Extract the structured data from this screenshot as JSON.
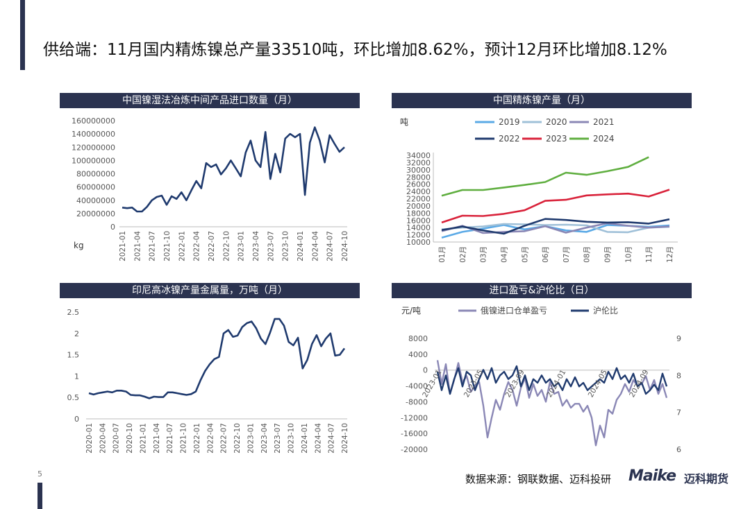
{
  "title": "供给端：11月国内精炼镍总产量33510吨，环比增加8.62%，预计12月环比增加8.12%",
  "page_number": "5",
  "source_note": "数据来源：钢联数据、迈科投研",
  "logo": {
    "latin": "Maike",
    "cn": "迈科期货"
  },
  "colors": {
    "navy": "#1f3a6e",
    "header_bg": "#2b3350",
    "accent": "#2b3350"
  },
  "chart_data": [
    {
      "id": "c1",
      "type": "line",
      "title": "中国镍湿法冶炼中间产品进口数量（月）",
      "ylabel": "kg",
      "ylim": [
        0,
        160000000
      ],
      "yticks": [
        0,
        20000000,
        40000000,
        60000000,
        80000000,
        100000000,
        120000000,
        140000000,
        160000000
      ],
      "ytick_labels": [
        "0",
        "20000000",
        "40000000",
        "60000000",
        "80000000",
        "100000000",
        "120000000",
        "140000000",
        "160000000"
      ],
      "xtick_labels": [
        "2021-01",
        "2021-04",
        "2021-07",
        "2021-10",
        "2022-01",
        "2022-04",
        "2022-07",
        "2022-10",
        "2023-01",
        "2023-04",
        "2023-07",
        "2023-10",
        "2024-01",
        "2024-04",
        "2024-07",
        "2024-10"
      ],
      "series": [
        {
          "name": "进口数量",
          "color": "#1f3a6e",
          "values": [
            29000000,
            28000000,
            29000000,
            23000000,
            23000000,
            30000000,
            40000000,
            45000000,
            47000000,
            33000000,
            46000000,
            42000000,
            52000000,
            40000000,
            55000000,
            69000000,
            58000000,
            96000000,
            90000000,
            94000000,
            79000000,
            88000000,
            100000000,
            88000000,
            76000000,
            112000000,
            130000000,
            100000000,
            90000000,
            143000000,
            72000000,
            110000000,
            82000000,
            133000000,
            140000000,
            135000000,
            140000000,
            48000000,
            127000000,
            150000000,
            130000000,
            97000000,
            138000000,
            125000000,
            113000000,
            120000000
          ]
        }
      ]
    },
    {
      "id": "c2",
      "type": "line",
      "title": "中国精炼镍产量（月）",
      "ylabel": "吨",
      "ylim": [
        10000,
        34000
      ],
      "yticks": [
        10000,
        12000,
        14000,
        16000,
        18000,
        20000,
        22000,
        24000,
        26000,
        28000,
        30000,
        32000,
        34000
      ],
      "ytick_labels": [
        "10000",
        "12000",
        "14000",
        "16000",
        "18000",
        "20000",
        "22000",
        "24000",
        "26000",
        "28000",
        "30000",
        "32000",
        "34000"
      ],
      "categories": [
        "01月",
        "02月",
        "03月",
        "04月",
        "05月",
        "06月",
        "07月",
        "08月",
        "09月",
        "10月",
        "11月",
        "12月"
      ],
      "series": [
        {
          "name": "2019",
          "color": "#5aa9e6",
          "values": [
            11200,
            12800,
            13700,
            14700,
            13500,
            14400,
            13200,
            12800,
            14700,
            14500,
            14200,
            14600
          ]
        },
        {
          "name": "2020",
          "color": "#9fc0d8",
          "values": [
            13500,
            14000,
            14300,
            15000,
            14900,
            14700,
            14800,
            14600,
            12800,
            12700,
            14000,
            14200
          ]
        },
        {
          "name": "2021",
          "color": "#8a87b5",
          "values": [
            13000,
            14500,
            12500,
            12800,
            13000,
            14400,
            12600,
            14000,
            15200,
            14500,
            14000,
            14300
          ]
        },
        {
          "name": "2022",
          "color": "#1f3a6e",
          "values": [
            13300,
            14300,
            13200,
            12300,
            14500,
            16400,
            16100,
            15600,
            15400,
            15500,
            15100,
            16300
          ]
        },
        {
          "name": "2023",
          "color": "#d9223a",
          "values": [
            15400,
            17300,
            17200,
            17800,
            18800,
            21400,
            21700,
            22900,
            23200,
            23400,
            22600,
            24500
          ]
        },
        {
          "name": "2024",
          "color": "#5fae3f",
          "values": [
            22800,
            24400,
            24400,
            25100,
            25800,
            26600,
            29200,
            28600,
            29600,
            30800,
            33500,
            null
          ]
        }
      ]
    },
    {
      "id": "c3",
      "type": "line",
      "title": "印尼高冰镍产量金属量，万吨（月）",
      "ylim": [
        0,
        2.5
      ],
      "yticks": [
        0,
        0.5,
        1,
        1.5,
        2,
        2.5
      ],
      "ytick_labels": [
        "0",
        "0.5",
        "1",
        "1.5",
        "2",
        "2.5"
      ],
      "xtick_labels": [
        "2020-01",
        "2020-04",
        "2020-07",
        "2020-10",
        "2021-01",
        "2021-04",
        "2021-07",
        "2021-10",
        "2022-01",
        "2022-04",
        "2022-07",
        "2022-10",
        "2023-01",
        "2023-04",
        "2023-07",
        "2023-10",
        "2024-01",
        "2024-04",
        "2024-07",
        "2024-10"
      ],
      "series": [
        {
          "name": "高冰镍",
          "color": "#1f3a6e",
          "values": [
            0.6,
            0.57,
            0.6,
            0.62,
            0.64,
            0.62,
            0.66,
            0.66,
            0.64,
            0.56,
            0.55,
            0.55,
            0.52,
            0.48,
            0.52,
            0.51,
            0.51,
            0.62,
            0.62,
            0.6,
            0.58,
            0.56,
            0.58,
            0.64,
            0.9,
            1.12,
            1.28,
            1.4,
            1.45,
            2.0,
            2.08,
            1.92,
            1.95,
            2.15,
            2.24,
            2.28,
            2.12,
            1.88,
            1.75,
            2.02,
            2.34,
            2.34,
            2.18,
            1.8,
            1.72,
            1.9,
            1.18,
            1.38,
            1.75,
            1.96,
            1.7,
            1.88,
            2.0,
            1.48,
            1.5,
            1.65
          ]
        }
      ]
    },
    {
      "id": "c4",
      "type": "line",
      "title": "进口盈亏&沪伦比（日）",
      "ylabel_left": "元/吨",
      "ylim_left": [
        -20000,
        8000
      ],
      "yticks_left": [
        8000,
        4000,
        0,
        -4000,
        -8000,
        -12000,
        -16000,
        -20000
      ],
      "ytick_labels_left": [
        "8000",
        "4000",
        "0",
        "-4000",
        "-8000",
        "-12000",
        "-16000",
        "-20000"
      ],
      "ylim_right": [
        6,
        9
      ],
      "yticks_right": [
        9,
        8,
        7,
        6
      ],
      "ytick_labels_right": [
        "9",
        "8",
        "7",
        "6"
      ],
      "xtick_labels": [
        "2023-01",
        "2023-05",
        "2023-09",
        "2024-01",
        "2024-05",
        "2024-09"
      ],
      "series": [
        {
          "name": "俄镍进口仓单盈亏",
          "color": "#8a87b5",
          "axis": "left",
          "values": [
            2500,
            -3500,
            1500,
            -6000,
            -2500,
            1800,
            -3000,
            -1500,
            -5500,
            -4000,
            -3000,
            -9000,
            -17000,
            -12000,
            -7500,
            -10000,
            -6000,
            -3000,
            -5000,
            -9000,
            -4500,
            -2000,
            -7000,
            -3500,
            -6500,
            -5000,
            -8000,
            -3000,
            -6000,
            -5500,
            -9000,
            -7500,
            -9500,
            -8500,
            -8500,
            -10500,
            -9000,
            -12000,
            -19000,
            -14000,
            -17000,
            -10000,
            -11000,
            -7500,
            -6000,
            -3500,
            -5500,
            -2500,
            -4000,
            -3500,
            -1500,
            -5000,
            -2500,
            -6000,
            -3500,
            -7000
          ]
        },
        {
          "name": "沪伦比",
          "color": "#1f3a6e",
          "axis": "right",
          "values": [
            8.1,
            7.6,
            8.0,
            7.5,
            7.9,
            8.2,
            7.7,
            8.1,
            8.0,
            7.6,
            7.9,
            8.15,
            7.9,
            8.2,
            7.8,
            8.0,
            8.1,
            7.9,
            8.0,
            8.25,
            7.7,
            8.0,
            7.6,
            7.9,
            7.8,
            8.0,
            7.8,
            7.9,
            7.7,
            7.8,
            7.6,
            7.9,
            7.7,
            7.95,
            7.7,
            7.8,
            7.6,
            7.7,
            7.8,
            7.9,
            7.8,
            8.1,
            7.9,
            8.2,
            7.9,
            8.0,
            7.8,
            8.05,
            7.7,
            7.8,
            7.5,
            7.6,
            7.75,
            7.6,
            8.05,
            7.7
          ]
        }
      ]
    }
  ]
}
